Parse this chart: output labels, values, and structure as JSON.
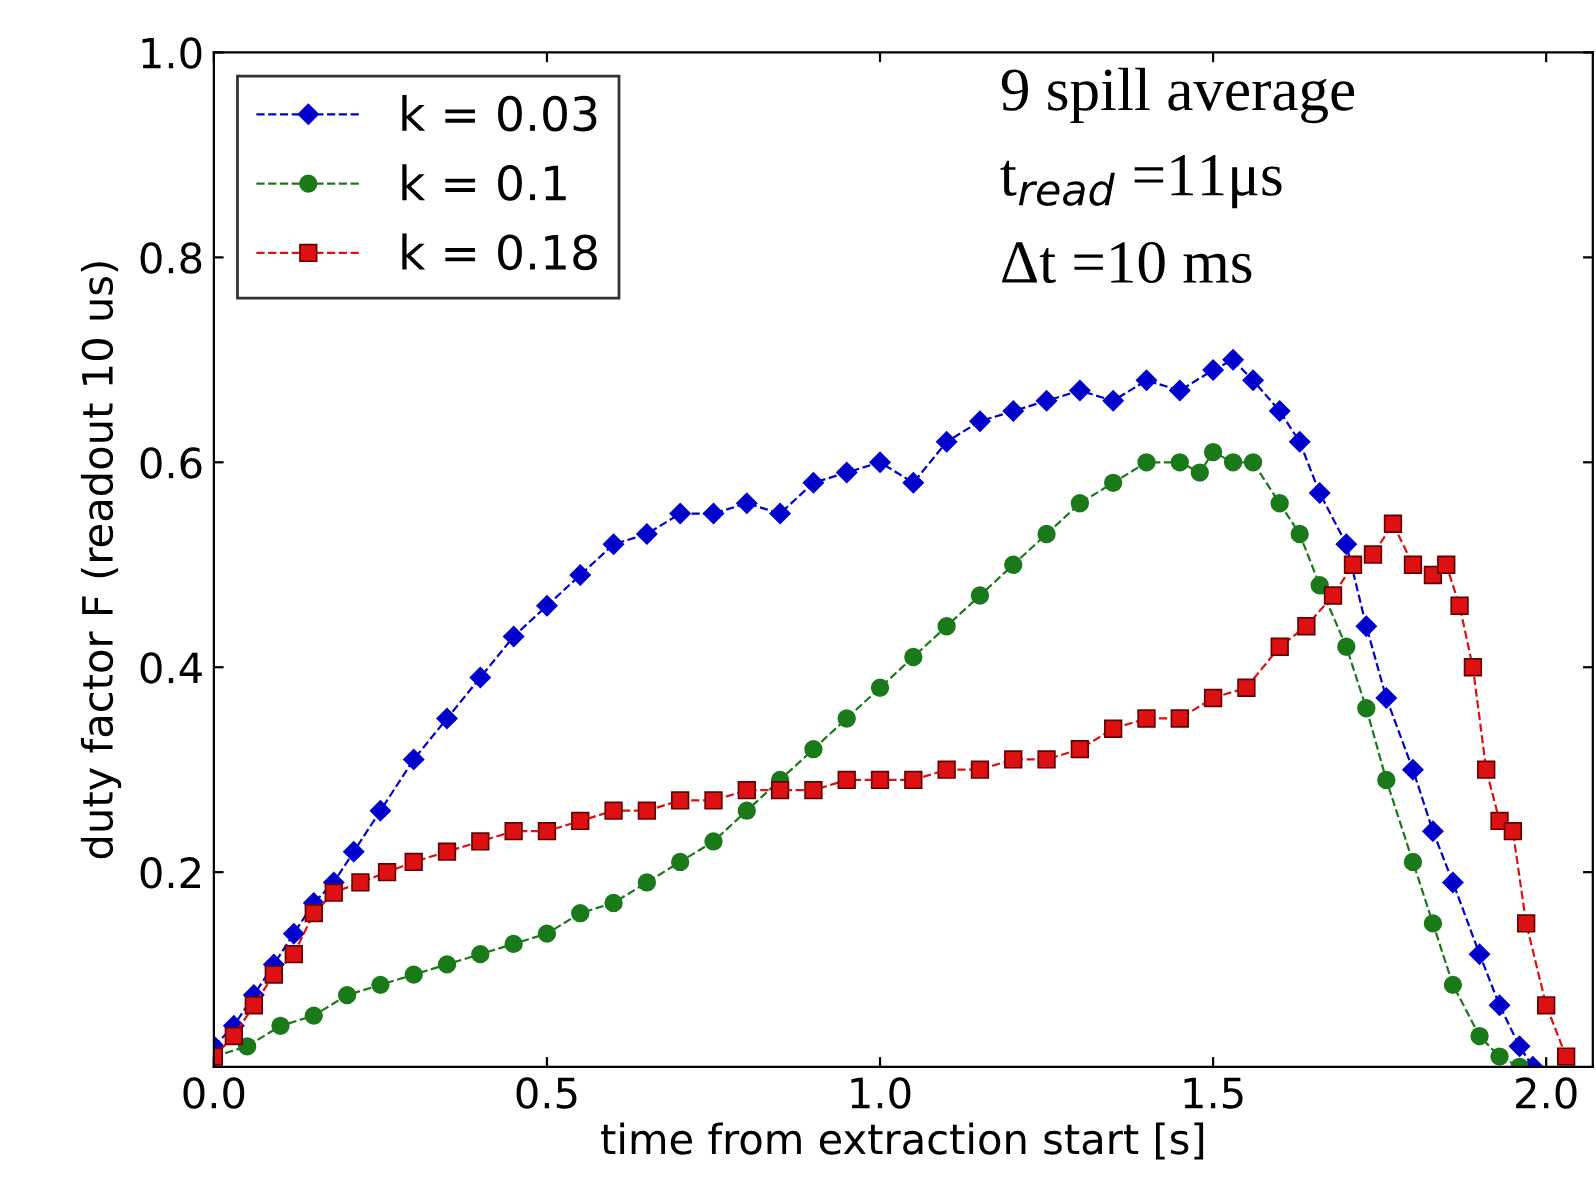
{
  "chart_data": {
    "type": "line",
    "xlabel": "time from extraction start [s]",
    "ylabel": "duty factor F (readout 10 us)",
    "xlim": [
      0,
      2.07
    ],
    "ylim": [
      0.01,
      1.0
    ],
    "xticks": [
      {
        "value": 0,
        "label": "0.0"
      },
      {
        "value": 0.5,
        "label": "0.5"
      },
      {
        "value": 1.0,
        "label": "1.0"
      },
      {
        "value": 1.5,
        "label": "1.5"
      },
      {
        "value": 2.0,
        "label": "2.0"
      }
    ],
    "yticks": [
      {
        "value": 0.2,
        "label": "0.2"
      },
      {
        "value": 0.4,
        "label": "0.4"
      },
      {
        "value": 0.6,
        "label": "0.6"
      },
      {
        "value": 0.8,
        "label": "0.8"
      },
      {
        "value": 1.0,
        "label": "1.0"
      }
    ],
    "grid": false,
    "legend": "top left",
    "line_style": "dashed",
    "annotations": [
      "9 spill average",
      "t$_{read}$ =11μs",
      "Δt =10 ms"
    ],
    "series": [
      {
        "name": "k = 0.03",
        "color": "#0000cc",
        "marker": "diamond",
        "x": [
          0.0,
          0.03,
          0.06,
          0.09,
          0.12,
          0.15,
          0.18,
          0.21,
          0.25,
          0.3,
          0.35,
          0.4,
          0.45,
          0.5,
          0.55,
          0.6,
          0.65,
          0.7,
          0.75,
          0.8,
          0.85,
          0.9,
          0.95,
          1.0,
          1.05,
          1.1,
          1.15,
          1.2,
          1.25,
          1.3,
          1.35,
          1.4,
          1.45,
          1.5,
          1.53,
          1.56,
          1.6,
          1.63,
          1.66,
          1.7,
          1.73,
          1.76,
          1.8,
          1.83,
          1.86,
          1.9,
          1.93,
          1.96,
          1.98
        ],
        "values": [
          0.03,
          0.05,
          0.08,
          0.11,
          0.14,
          0.17,
          0.19,
          0.22,
          0.26,
          0.31,
          0.35,
          0.39,
          0.43,
          0.46,
          0.49,
          0.52,
          0.53,
          0.55,
          0.55,
          0.56,
          0.55,
          0.58,
          0.59,
          0.6,
          0.58,
          0.62,
          0.64,
          0.65,
          0.66,
          0.67,
          0.66,
          0.68,
          0.67,
          0.69,
          0.7,
          0.68,
          0.65,
          0.62,
          0.57,
          0.52,
          0.44,
          0.37,
          0.3,
          0.24,
          0.19,
          0.12,
          0.07,
          0.03,
          0.01
        ]
      },
      {
        "name": "k = 0.1",
        "color": "#1a7a1a",
        "marker": "circle",
        "x": [
          0.0,
          0.05,
          0.1,
          0.15,
          0.2,
          0.25,
          0.3,
          0.35,
          0.4,
          0.45,
          0.5,
          0.55,
          0.6,
          0.65,
          0.7,
          0.75,
          0.8,
          0.85,
          0.9,
          0.95,
          1.0,
          1.05,
          1.1,
          1.15,
          1.2,
          1.25,
          1.3,
          1.35,
          1.4,
          1.45,
          1.48,
          1.5,
          1.53,
          1.56,
          1.6,
          1.63,
          1.66,
          1.7,
          1.73,
          1.76,
          1.8,
          1.83,
          1.86,
          1.9,
          1.93,
          1.96
        ],
        "values": [
          0.02,
          0.03,
          0.05,
          0.06,
          0.08,
          0.09,
          0.1,
          0.11,
          0.12,
          0.13,
          0.14,
          0.16,
          0.17,
          0.19,
          0.21,
          0.23,
          0.26,
          0.29,
          0.32,
          0.35,
          0.38,
          0.41,
          0.44,
          0.47,
          0.5,
          0.53,
          0.56,
          0.58,
          0.6,
          0.6,
          0.59,
          0.61,
          0.6,
          0.6,
          0.56,
          0.53,
          0.48,
          0.42,
          0.36,
          0.29,
          0.21,
          0.15,
          0.09,
          0.04,
          0.02,
          0.01
        ]
      },
      {
        "name": "k = 0.18",
        "color": "#dd1111",
        "marker": "square",
        "x": [
          0.0,
          0.03,
          0.06,
          0.09,
          0.12,
          0.15,
          0.18,
          0.22,
          0.26,
          0.3,
          0.35,
          0.4,
          0.45,
          0.5,
          0.55,
          0.6,
          0.65,
          0.7,
          0.75,
          0.8,
          0.85,
          0.9,
          0.95,
          1.0,
          1.05,
          1.1,
          1.15,
          1.2,
          1.25,
          1.3,
          1.35,
          1.4,
          1.45,
          1.5,
          1.55,
          1.6,
          1.64,
          1.68,
          1.71,
          1.74,
          1.77,
          1.8,
          1.83,
          1.85,
          1.87,
          1.89,
          1.91,
          1.93,
          1.95,
          1.97,
          2.0,
          2.03
        ],
        "values": [
          0.02,
          0.04,
          0.07,
          0.1,
          0.12,
          0.16,
          0.18,
          0.19,
          0.2,
          0.21,
          0.22,
          0.23,
          0.24,
          0.24,
          0.25,
          0.26,
          0.26,
          0.27,
          0.27,
          0.28,
          0.28,
          0.28,
          0.29,
          0.29,
          0.29,
          0.3,
          0.3,
          0.31,
          0.31,
          0.32,
          0.34,
          0.35,
          0.35,
          0.37,
          0.38,
          0.42,
          0.44,
          0.47,
          0.5,
          0.51,
          0.54,
          0.5,
          0.49,
          0.5,
          0.46,
          0.4,
          0.3,
          0.25,
          0.24,
          0.15,
          0.07,
          0.02
        ]
      }
    ]
  }
}
